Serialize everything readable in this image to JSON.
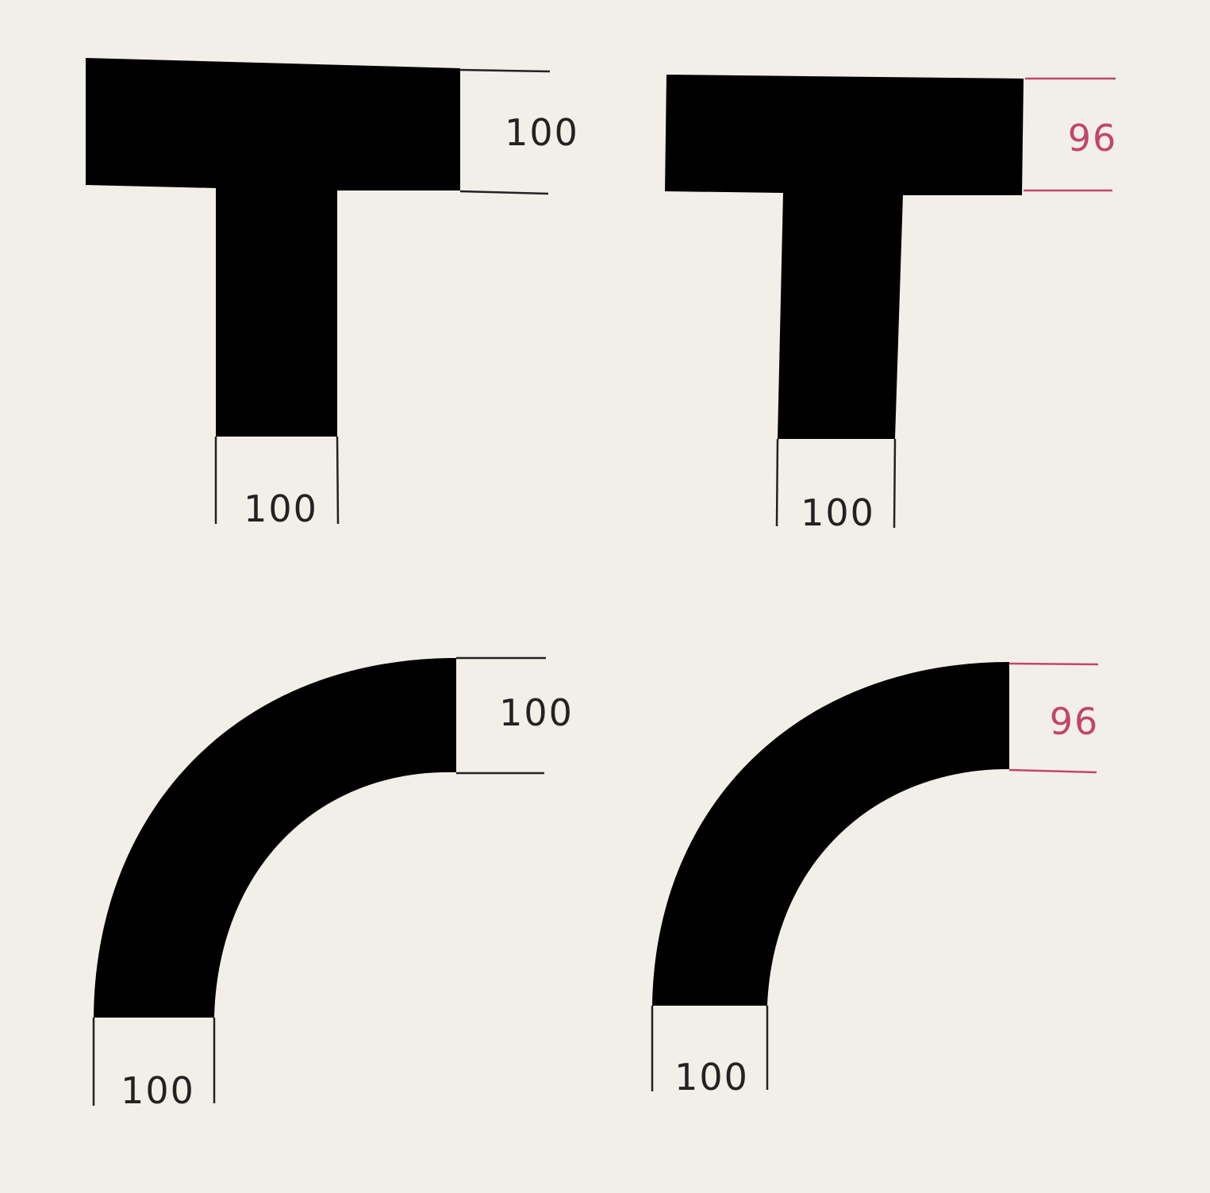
{
  "colors": {
    "background": "#f1efe8",
    "shape": "#000000",
    "line_neutral": "#222222",
    "accent": "#c2466a"
  },
  "panels": [
    {
      "shape": "T",
      "horizontal_stroke_label": "100",
      "vertical_stroke_label": "100",
      "horizontal_accent": false
    },
    {
      "shape": "T",
      "horizontal_stroke_label": "96",
      "vertical_stroke_label": "100",
      "horizontal_accent": true
    },
    {
      "shape": "curve",
      "horizontal_stroke_label": "100",
      "vertical_stroke_label": "100",
      "horizontal_accent": false
    },
    {
      "shape": "curve",
      "horizontal_stroke_label": "96",
      "vertical_stroke_label": "100",
      "horizontal_accent": true
    }
  ]
}
